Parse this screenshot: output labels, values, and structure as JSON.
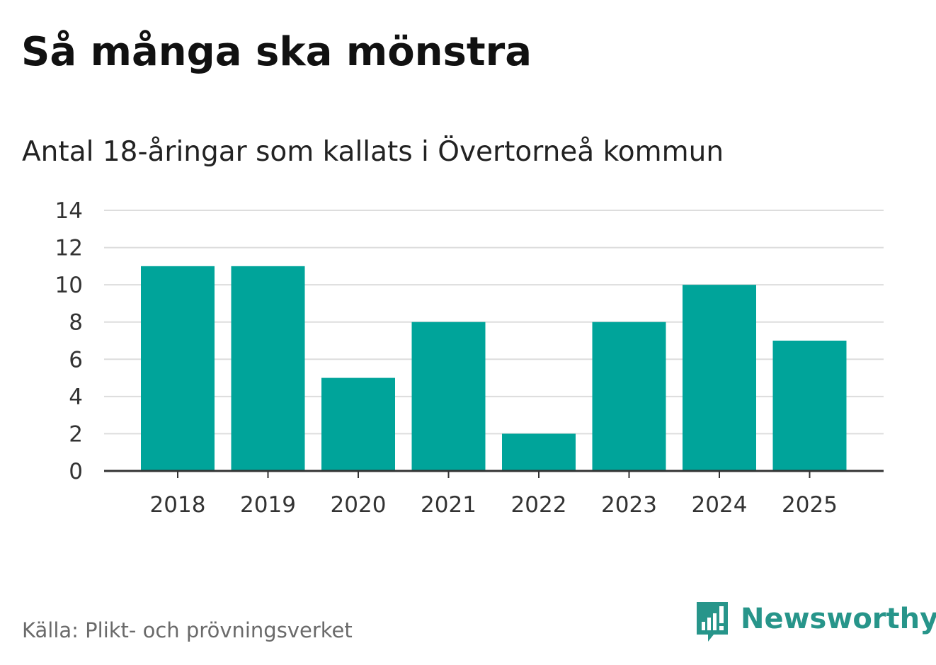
{
  "title": "Så många ska mönstra",
  "subtitle": "Antal 18-åringar som kallats i Övertorneå kommun",
  "source": "Källa: Plikt- och prövningsverket",
  "brand": {
    "name": "Newsworthy",
    "logo_icon": "bar-chart-speech-bubble-icon",
    "color": "#27958a"
  },
  "colors": {
    "bar": "#00a49a",
    "grid": "#dddddd",
    "axis": "#333333",
    "tick_text": "#333333"
  },
  "chart_data": {
    "type": "bar",
    "categories": [
      "2018",
      "2019",
      "2020",
      "2021",
      "2022",
      "2023",
      "2024",
      "2025"
    ],
    "values": [
      11,
      11,
      5,
      8,
      2,
      8,
      10,
      7
    ],
    "title": "Så många ska mönstra",
    "subtitle": "Antal 18-åringar som kallats i Övertorneå kommun",
    "xlabel": "",
    "ylabel": "",
    "ylim": [
      0,
      14
    ],
    "yticks": [
      0,
      2,
      4,
      6,
      8,
      10,
      12,
      14
    ],
    "grid": true,
    "legend": "none"
  }
}
